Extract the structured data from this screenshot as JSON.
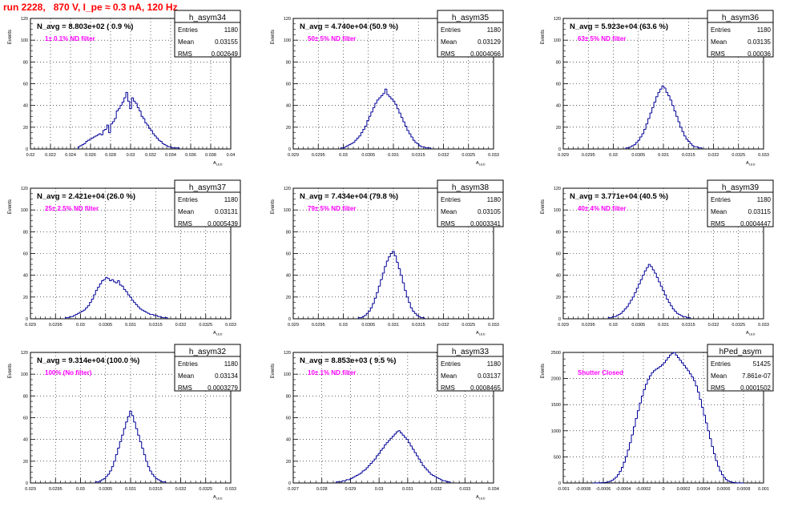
{
  "header": {
    "run_title": "run 2228,   870 V, I_pe ≈ 0.3 nA, 120 Hz"
  },
  "colors": {
    "title": "#ff0000",
    "series": "#000099",
    "annotation": "#ff00ff",
    "grid": "#000000"
  },
  "chart_data": [
    {
      "type": "histogram",
      "name": "h_asym34",
      "navg": "N_avg = 8.803e+02 ( 0.9 %)",
      "note": "1± 0.1% ND filter",
      "xlabel": "A_LED",
      "ylabel": "Events",
      "stats": [
        [
          "Entries",
          "1180"
        ],
        [
          "Mean",
          "0.03155"
        ],
        [
          "RMS",
          "0.002649"
        ]
      ],
      "xlim": [
        0.02,
        0.041
      ],
      "ylim": [
        0,
        120
      ],
      "yticks": [
        0,
        20,
        40,
        60,
        80,
        100,
        120
      ],
      "xticks": [
        "0.02",
        "0.022",
        "0.024",
        "0.026",
        "0.028",
        "0.03",
        "0.032",
        "0.034",
        "0.036",
        "0.038",
        "0.04"
      ],
      "bin_start": 0.025,
      "bin_width": 0.0002,
      "counts": [
        2,
        3,
        4,
        5,
        7,
        8,
        9,
        10,
        11,
        12,
        13,
        14,
        13,
        17,
        18,
        22,
        15,
        23,
        25,
        28,
        35,
        37,
        40,
        43,
        47,
        52,
        44,
        37,
        47,
        44,
        42,
        38,
        35,
        30,
        28,
        24,
        22,
        19,
        17,
        14,
        12,
        10,
        8,
        7,
        5,
        4,
        3,
        2,
        2,
        1,
        1,
        1,
        1
      ]
    },
    {
      "type": "histogram",
      "name": "h_asym35",
      "navg": "N_avg = 4.740e+04 (50.9 %)",
      "note": "50± 5% ND filter",
      "xlabel": "A_LED",
      "ylabel": "Events",
      "stats": [
        [
          "Entries",
          "1180"
        ],
        [
          "Mean",
          "0.03129"
        ],
        [
          "RMS",
          "0.0004066"
        ]
      ],
      "xlim": [
        0.029,
        0.033
      ],
      "ylim": [
        0,
        120
      ],
      "yticks": [
        0,
        20,
        40,
        60,
        80,
        100,
        120
      ],
      "xticks": [
        "0.029",
        "0.0295",
        "0.03",
        "0.0305",
        "0.031",
        "0.0315",
        "0.032",
        "0.0325",
        "0.033"
      ],
      "bin_start": 0.02995,
      "bin_width": 4e-05,
      "counts": [
        1,
        1,
        2,
        3,
        4,
        5,
        6,
        8,
        10,
        12,
        15,
        18,
        21,
        26,
        30,
        34,
        38,
        42,
        45,
        47,
        49,
        51,
        55,
        50,
        48,
        46,
        44,
        41,
        37,
        33,
        29,
        25,
        21,
        17,
        14,
        11,
        8,
        6,
        5,
        3,
        2,
        2,
        1,
        1,
        1
      ]
    },
    {
      "type": "histogram",
      "name": "h_asym36",
      "navg": "N_avg = 5.923e+04 (63.6 %)",
      "note": "63± 5% ND filter",
      "xlabel": "A_LED",
      "ylabel": "Events",
      "stats": [
        [
          "Entries",
          "1180"
        ],
        [
          "Mean",
          "0.03135"
        ],
        [
          "RMS",
          "0.00036"
        ]
      ],
      "xlim": [
        0.029,
        0.033
      ],
      "ylim": [
        0,
        120
      ],
      "yticks": [
        0,
        20,
        40,
        60,
        80,
        100,
        120
      ],
      "xticks": [
        "0.029",
        "0.0295",
        "0.03",
        "0.0305",
        "0.031",
        "0.0315",
        "0.032",
        "0.0325",
        "0.033"
      ],
      "bin_start": 0.03025,
      "bin_width": 4e-05,
      "counts": [
        1,
        1,
        2,
        3,
        4,
        6,
        8,
        11,
        14,
        18,
        23,
        28,
        33,
        38,
        43,
        48,
        52,
        55,
        58,
        56,
        52,
        49,
        45,
        40,
        35,
        30,
        25,
        20,
        16,
        12,
        9,
        7,
        5,
        3,
        2,
        2,
        1,
        1
      ]
    },
    {
      "type": "histogram",
      "name": "h_asym37",
      "navg": "N_avg = 2.421e+04 (26.0 %)",
      "note": "25± 2.5% ND filter",
      "xlabel": "A_LED",
      "ylabel": "Events",
      "stats": [
        [
          "Entries",
          "1180"
        ],
        [
          "Mean",
          "0.03131"
        ],
        [
          "RMS",
          "0.0005439"
        ]
      ],
      "xlim": [
        0.029,
        0.033
      ],
      "ylim": [
        0,
        120
      ],
      "yticks": [
        0,
        20,
        40,
        60,
        80,
        100,
        120
      ],
      "xticks": [
        "0.029",
        "0.0295",
        "0.03",
        "0.0305",
        "0.031",
        "0.0315",
        "0.032",
        "0.0325",
        "0.033"
      ],
      "bin_start": 0.0297,
      "bin_width": 4e-05,
      "counts": [
        1,
        1,
        2,
        2,
        3,
        4,
        5,
        6,
        7,
        8,
        10,
        12,
        15,
        18,
        22,
        26,
        29,
        32,
        35,
        36,
        38,
        37,
        35,
        36,
        34,
        33,
        35,
        31,
        30,
        27,
        25,
        22,
        20,
        17,
        15,
        13,
        11,
        9,
        8,
        7,
        6,
        5,
        4,
        4,
        3,
        3,
        2,
        2,
        1,
        1,
        1
      ]
    },
    {
      "type": "histogram",
      "name": "h_asym38",
      "navg": "N_avg = 7.434e+04 (79.8 %)",
      "note": "79± 5% ND filter",
      "xlabel": "A_LED",
      "ylabel": "Events",
      "stats": [
        [
          "Entries",
          "1180"
        ],
        [
          "Mean",
          "0.03105"
        ],
        [
          "RMS",
          "0.0003341"
        ]
      ],
      "xlim": [
        0.029,
        0.033
      ],
      "ylim": [
        0,
        120
      ],
      "yticks": [
        0,
        20,
        40,
        60,
        80,
        100,
        120
      ],
      "xticks": [
        "0.029",
        "0.0295",
        "0.03",
        "0.0305",
        "0.031",
        "0.0315",
        "0.032",
        "0.0325",
        "0.033"
      ],
      "bin_start": 0.0303,
      "bin_width": 4e-05,
      "counts": [
        1,
        1,
        2,
        3,
        5,
        7,
        10,
        14,
        19,
        24,
        30,
        36,
        42,
        48,
        53,
        57,
        60,
        62,
        58,
        52,
        46,
        40,
        33,
        26,
        20,
        15,
        10,
        7,
        5,
        3,
        2,
        1,
        1
      ]
    },
    {
      "type": "histogram",
      "name": "h_asym39",
      "navg": "N_avg = 3.771e+04 (40.5 %)",
      "note": "40± 4% ND filter",
      "xlabel": "A_LED",
      "ylabel": "Events",
      "stats": [
        [
          "Entries",
          "1180"
        ],
        [
          "Mean",
          "0.03115"
        ],
        [
          "RMS",
          "0.0004447"
        ]
      ],
      "xlim": [
        0.029,
        0.033
      ],
      "ylim": [
        0,
        120
      ],
      "yticks": [
        0,
        20,
        40,
        60,
        80,
        100,
        120
      ],
      "xticks": [
        "0.029",
        "0.0295",
        "0.03",
        "0.0305",
        "0.031",
        "0.0315",
        "0.032",
        "0.0325",
        "0.033"
      ],
      "bin_start": 0.0299,
      "bin_width": 4e-05,
      "counts": [
        1,
        1,
        2,
        2,
        3,
        4,
        5,
        7,
        9,
        11,
        14,
        17,
        20,
        24,
        28,
        32,
        36,
        40,
        44,
        47,
        50,
        48,
        45,
        42,
        38,
        34,
        30,
        26,
        22,
        18,
        15,
        12,
        9,
        7,
        5,
        4,
        3,
        2,
        2,
        1,
        1
      ]
    },
    {
      "type": "histogram",
      "name": "h_asym32",
      "navg": "N_avg = 9.314e+04 (100.0 %)",
      "note": "100% (No filter)",
      "xlabel": "A_LED",
      "ylabel": "Events",
      "stats": [
        [
          "Entries",
          "1180"
        ],
        [
          "Mean",
          "0.03134"
        ],
        [
          "RMS",
          "0.0003279"
        ]
      ],
      "xlim": [
        0.029,
        0.033
      ],
      "ylim": [
        0,
        120
      ],
      "yticks": [
        0,
        20,
        40,
        60,
        80,
        100,
        120
      ],
      "xticks": [
        "0.029",
        "0.0295",
        "0.03",
        "0.0305",
        "0.031",
        "0.0315",
        "0.032",
        "0.0325",
        "0.033"
      ],
      "bin_start": 0.0303,
      "bin_width": 4e-05,
      "counts": [
        1,
        1,
        2,
        3,
        4,
        6,
        8,
        11,
        15,
        20,
        26,
        32,
        38,
        44,
        50,
        56,
        61,
        66,
        62,
        56,
        50,
        44,
        38,
        32,
        26,
        20,
        15,
        11,
        8,
        6,
        4,
        3,
        2,
        1,
        1
      ]
    },
    {
      "type": "histogram",
      "name": "h_asym33",
      "navg": "N_avg = 8.853e+03 ( 9.5 %)",
      "note": "10± 1% ND filter",
      "xlabel": "A_LED",
      "ylabel": "Events",
      "stats": [
        [
          "Entries",
          "1180"
        ],
        [
          "Mean",
          "0.03137"
        ],
        [
          "RMS",
          "0.0008465"
        ]
      ],
      "xlim": [
        0.027,
        0.034
      ],
      "ylim": [
        0,
        120
      ],
      "yticks": [
        0,
        20,
        40,
        60,
        80,
        100,
        120
      ],
      "xticks": [
        "0.027",
        "0.028",
        "0.029",
        "0.03",
        "0.031",
        "0.032",
        "0.033",
        "0.034"
      ],
      "bin_start": 0.0285,
      "bin_width": 7e-05,
      "counts": [
        1,
        1,
        1,
        2,
        2,
        3,
        3,
        4,
        5,
        6,
        7,
        8,
        9,
        11,
        12,
        14,
        16,
        18,
        20,
        22,
        25,
        27,
        30,
        32,
        35,
        37,
        39,
        41,
        43,
        45,
        47,
        48,
        46,
        44,
        42,
        40,
        37,
        34,
        31,
        28,
        25,
        22,
        19,
        16,
        14,
        12,
        10,
        8,
        7,
        6,
        5,
        4,
        3,
        2,
        2,
        1,
        1
      ]
    },
    {
      "type": "histogram",
      "name": "hPed_asym",
      "navg": "",
      "note": "Shutter Closed",
      "xlabel": "",
      "ylabel": "Events",
      "stats": [
        [
          "Entries",
          "51425"
        ],
        [
          "Mean",
          "7.861e-07"
        ],
        [
          "RMS",
          "0.0001502"
        ]
      ],
      "xlim": [
        -0.001,
        0.001
      ],
      "ylim": [
        0,
        2500
      ],
      "yticks": [
        0,
        500,
        1000,
        1500,
        2000,
        2500
      ],
      "xticks": [
        "-0.001",
        "-0.0008",
        "-0.0006",
        "-0.0004",
        "-0.0002",
        "0",
        "0.0002",
        "0.0004",
        "0.0006",
        "0.0008",
        "0.001"
      ],
      "bin_start": -0.0007,
      "bin_width": 2e-05,
      "counts": [
        1,
        1,
        2,
        3,
        5,
        8,
        12,
        20,
        32,
        50,
        76,
        112,
        160,
        222,
        300,
        394,
        504,
        630,
        770,
        920,
        1075,
        1232,
        1385,
        1530,
        1665,
        1786,
        1891,
        1980,
        2052,
        2110,
        2150,
        2180,
        2200,
        2230,
        2260,
        2300,
        2350,
        2400,
        2450,
        2480,
        2500,
        2450,
        2400,
        2350,
        2300,
        2250,
        2200,
        2150,
        2090,
        2030,
        1960,
        1860,
        1740,
        1600,
        1450,
        1300,
        1150,
        1000,
        850,
        700,
        560,
        430,
        320,
        230,
        160,
        105,
        66,
        40,
        24,
        14,
        8,
        4,
        2,
        1,
        1
      ]
    }
  ]
}
